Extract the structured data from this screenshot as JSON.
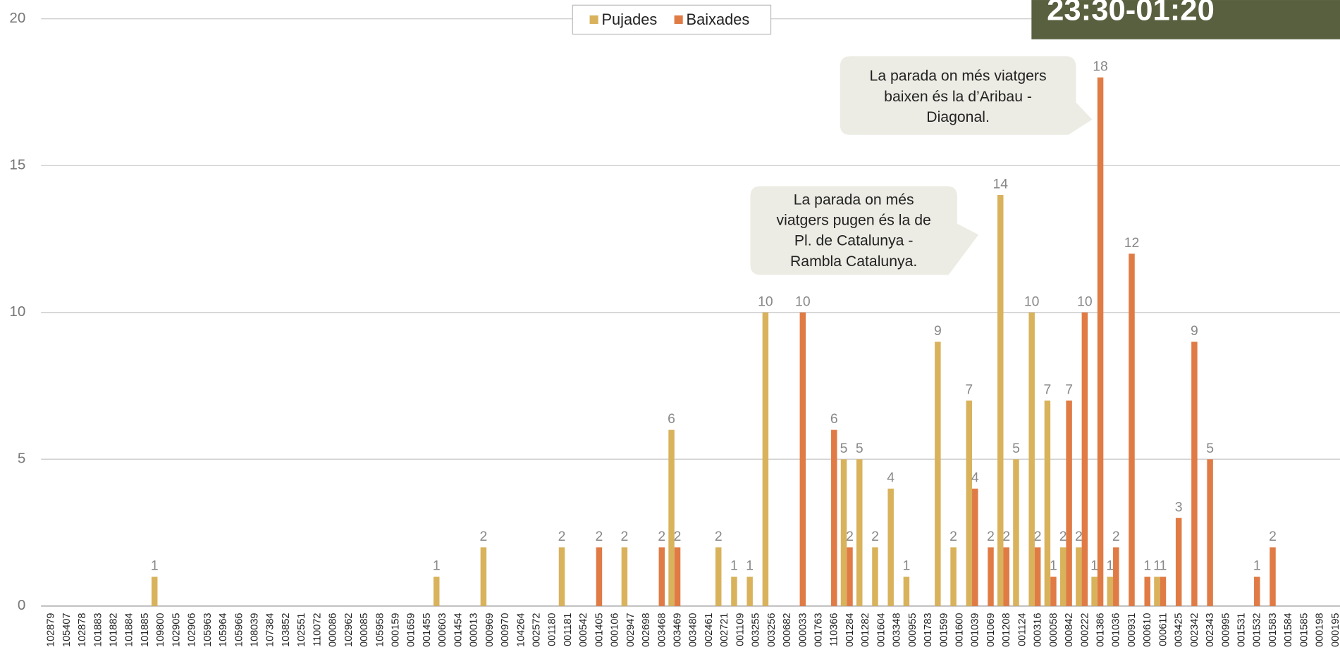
{
  "chart_data": {
    "type": "bar",
    "title": "23:30-01:20",
    "categories": [
      "102879",
      "105407",
      "102878",
      "101883",
      "101882",
      "101884",
      "101885",
      "109800",
      "102905",
      "102906",
      "105963",
      "105964",
      "105966",
      "108039",
      "107384",
      "103852",
      "102551",
      "110072",
      "000086",
      "102962",
      "000085",
      "105958",
      "000159",
      "001659",
      "001455",
      "000603",
      "001454",
      "000013",
      "000969",
      "000970",
      "104264",
      "002572",
      "001180",
      "001181",
      "000542",
      "001405",
      "000106",
      "002947",
      "002698",
      "003468",
      "003469",
      "003480",
      "002461",
      "002721",
      "001109",
      "003255",
      "003256",
      "000682",
      "000033",
      "001763",
      "110366",
      "001284",
      "001282",
      "001604",
      "003348",
      "000955",
      "001783",
      "001599",
      "001600",
      "001039",
      "001069",
      "001208",
      "001124",
      "000316",
      "000058",
      "000842",
      "000222",
      "001386",
      "001036",
      "000931",
      "000610",
      "000611",
      "003425",
      "002342",
      "002343",
      "000995",
      "001531",
      "001532",
      "001583",
      "001584",
      "001585",
      "000198",
      "000195"
    ],
    "series": [
      {
        "name": "Pujades",
        "color": "#d9b25c",
        "values": [
          null,
          null,
          null,
          null,
          null,
          null,
          null,
          1,
          null,
          null,
          null,
          null,
          null,
          null,
          null,
          null,
          null,
          null,
          null,
          null,
          null,
          null,
          null,
          null,
          null,
          1,
          null,
          null,
          2,
          null,
          null,
          null,
          null,
          2,
          null,
          null,
          null,
          2,
          null,
          null,
          6,
          null,
          null,
          2,
          1,
          1,
          10,
          null,
          null,
          null,
          null,
          5,
          5,
          2,
          4,
          1,
          null,
          9,
          2,
          7,
          null,
          14,
          5,
          10,
          7,
          2,
          2,
          1,
          1,
          null,
          null,
          1,
          null,
          null,
          null,
          null,
          null,
          null,
          null,
          null,
          null,
          null,
          null
        ]
      },
      {
        "name": "Baixades",
        "color": "#e07b45",
        "values": [
          null,
          null,
          null,
          null,
          null,
          null,
          null,
          null,
          null,
          null,
          null,
          null,
          null,
          null,
          null,
          null,
          null,
          null,
          null,
          null,
          null,
          null,
          null,
          null,
          null,
          null,
          null,
          null,
          null,
          null,
          null,
          null,
          null,
          null,
          null,
          2,
          null,
          null,
          null,
          2,
          2,
          null,
          null,
          null,
          null,
          null,
          null,
          null,
          10,
          null,
          6,
          2,
          null,
          null,
          null,
          null,
          null,
          null,
          null,
          4,
          2,
          2,
          null,
          2,
          1,
          7,
          10,
          18,
          2,
          12,
          1,
          1,
          3,
          9,
          5,
          null,
          null,
          1,
          2,
          null,
          null,
          null,
          null
        ]
      }
    ],
    "ylim": [
      0,
      20
    ],
    "yticks": [
      0,
      5,
      10,
      15,
      20
    ],
    "grid": true,
    "legend": "top",
    "annotations": [
      {
        "lines": [
          "La parada on més viatgers",
          "baixen és la d’Aribau -",
          "Diagonal."
        ]
      },
      {
        "lines": [
          "La parada on més",
          "viatgers pugen és la de",
          "Pl. de Catalunya -",
          "Rambla Catalunya."
        ]
      }
    ]
  }
}
